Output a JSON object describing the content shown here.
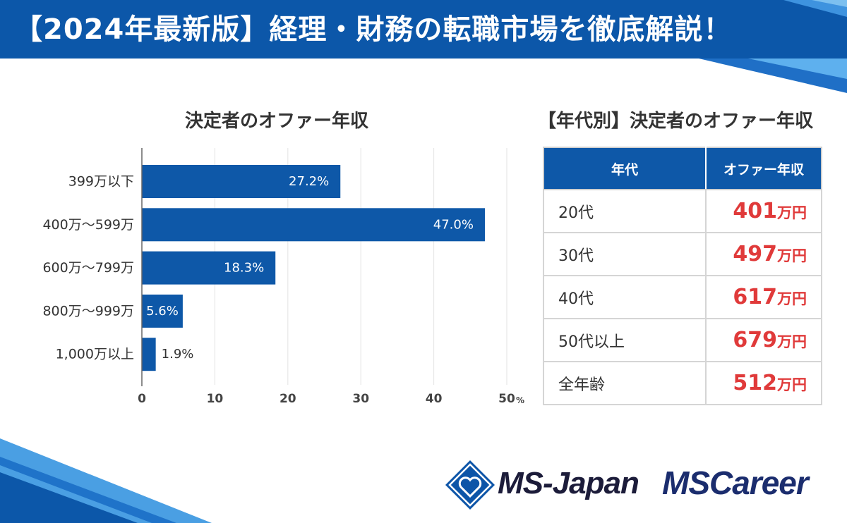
{
  "header": {
    "title": "【2024年最新版】経理・財務の転職市場を徹底解説！"
  },
  "chart_data": [
    {
      "type": "bar",
      "title": "決定者のオファー年収",
      "categories": [
        "399万以下",
        "400万～599万",
        "600万～799万",
        "800万～999万",
        "1,000万以上"
      ],
      "values": [
        27.2,
        47.0,
        18.3,
        5.6,
        1.9
      ],
      "value_labels": [
        "27.2%",
        "47.0%",
        "18.3%",
        "5.6%",
        "1.9%"
      ],
      "xlim": [
        0,
        50
      ],
      "ticks": [
        0,
        10,
        20,
        30,
        40,
        50
      ],
      "tick_labels": [
        "0",
        "10",
        "20",
        "30",
        "40",
        "50"
      ],
      "axis_unit": "%",
      "grid": true,
      "bar_color": "#0e58a8"
    },
    {
      "type": "table",
      "title": "【年代別】決定者のオファー年収",
      "columns": [
        "年代",
        "オファー年収"
      ],
      "rows": [
        {
          "age": "20代",
          "amount": "401",
          "unit": "万円"
        },
        {
          "age": "30代",
          "amount": "497",
          "unit": "万円"
        },
        {
          "age": "40代",
          "amount": "617",
          "unit": "万円"
        },
        {
          "age": "50代以上",
          "amount": "679",
          "unit": "万円"
        },
        {
          "age": "全年齢",
          "amount": "512",
          "unit": "万円"
        }
      ]
    }
  ],
  "logos": {
    "ms_japan": "MS-Japan",
    "ms_career": "MSCareer"
  },
  "colors": {
    "brand_blue": "#0e58a8",
    "stripe_light": "#4a9fe3",
    "value_red": "#e03a3a",
    "logo_navy": "#1b2d6e"
  }
}
